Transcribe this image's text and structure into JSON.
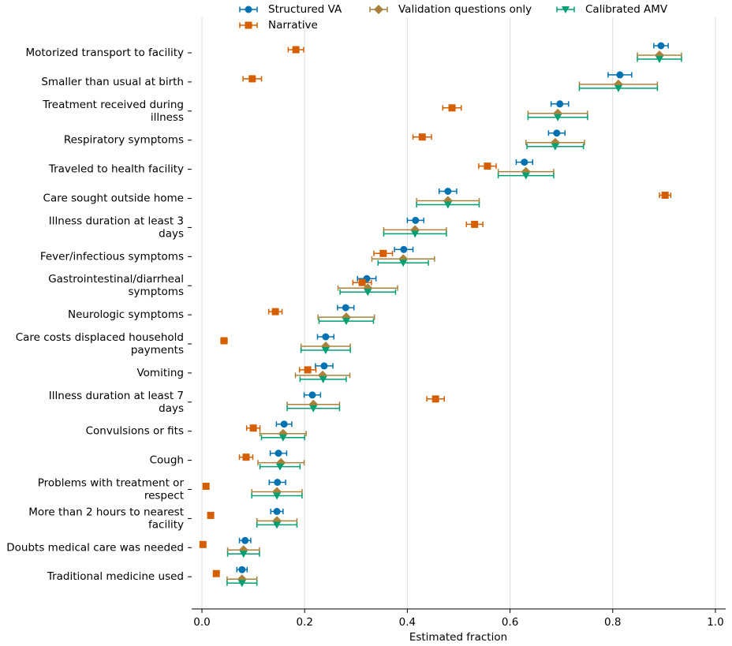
{
  "chart_data": {
    "type": "dot-errorbar",
    "xlabel": "Estimated fraction",
    "categories": [
      "Motorized transport to facility",
      "Smaller than usual at birth",
      "Treatment received during\nillness",
      "Respiratory symptoms",
      "Traveled to health facility",
      "Care sought outside home",
      "Illness duration at least 3\ndays",
      "Fever/infectious symptoms",
      "Gastrointestinal/diarrheal\nsymptoms",
      "Neurologic symptoms",
      "Care costs displaced household\npayments",
      "Vomiting",
      "Illness duration at least 7\ndays",
      "Convulsions or fits",
      "Cough",
      "Problems with treatment or\nrespect",
      "More than 2 hours to nearest\nfacility",
      "Doubts medical care was needed",
      "Traditional medicine used"
    ],
    "series": [
      {
        "name": "Structured VA",
        "color": "#0072b2",
        "marker": "circle",
        "values": [
          0.894,
          0.814,
          0.697,
          0.691,
          0.628,
          0.479,
          0.416,
          0.393,
          0.321,
          0.28,
          0.241,
          0.238,
          0.215,
          0.16,
          0.149,
          0.147,
          0.146,
          0.084,
          0.078
        ],
        "errors": [
          0.014,
          0.023,
          0.017,
          0.016,
          0.016,
          0.017,
          0.016,
          0.018,
          0.018,
          0.016,
          0.016,
          0.017,
          0.016,
          0.015,
          0.016,
          0.016,
          0.012,
          0.011,
          0.01
        ]
      },
      {
        "name": "Narrative",
        "color": "#d55e00",
        "marker": "square",
        "values": [
          0.183,
          0.098,
          0.487,
          0.429,
          0.556,
          0.902,
          0.531,
          0.353,
          0.312,
          0.143,
          0.043,
          0.206,
          0.455,
          0.1,
          0.086,
          0.008,
          0.017,
          0.002,
          0.028
        ],
        "errors": [
          0.015,
          0.018,
          0.018,
          0.018,
          0.017,
          0.011,
          0.016,
          0.018,
          0.018,
          0.013,
          0.006,
          0.016,
          0.017,
          0.013,
          0.013,
          0.004,
          0.004,
          0.003,
          0.004
        ]
      },
      {
        "name": "Validation questions only",
        "color": "#a8823a",
        "marker": "diamond",
        "values": [
          0.891,
          0.811,
          0.693,
          0.688,
          0.631,
          0.479,
          0.415,
          0.392,
          0.323,
          0.281,
          0.241,
          0.235,
          0.217,
          0.158,
          0.154,
          0.146,
          0.146,
          0.081,
          0.078
        ],
        "errors": [
          0.043,
          0.076,
          0.058,
          0.057,
          0.054,
          0.061,
          0.061,
          0.061,
          0.058,
          0.055,
          0.048,
          0.053,
          0.051,
          0.045,
          0.045,
          0.049,
          0.039,
          0.031,
          0.029
        ]
      },
      {
        "name": "Calibrated AMV",
        "color": "#009e73",
        "marker": "triangle-down",
        "values": [
          0.891,
          0.811,
          0.693,
          0.688,
          0.631,
          0.479,
          0.415,
          0.392,
          0.323,
          0.281,
          0.241,
          0.236,
          0.217,
          0.158,
          0.152,
          0.146,
          0.146,
          0.081,
          0.078
        ],
        "errors": [
          0.043,
          0.076,
          0.058,
          0.055,
          0.054,
          0.061,
          0.061,
          0.049,
          0.054,
          0.053,
          0.048,
          0.045,
          0.051,
          0.042,
          0.039,
          0.049,
          0.039,
          0.031,
          0.029
        ]
      }
    ],
    "xlim": [
      -0.02,
      1.02
    ],
    "xticks": [
      {
        "value": 0,
        "label": "0.0"
      },
      0.2,
      0.4,
      0.6,
      0.8,
      {
        "value": 1,
        "label": "1.0"
      }
    ],
    "grid": true,
    "legend": "upper center"
  }
}
